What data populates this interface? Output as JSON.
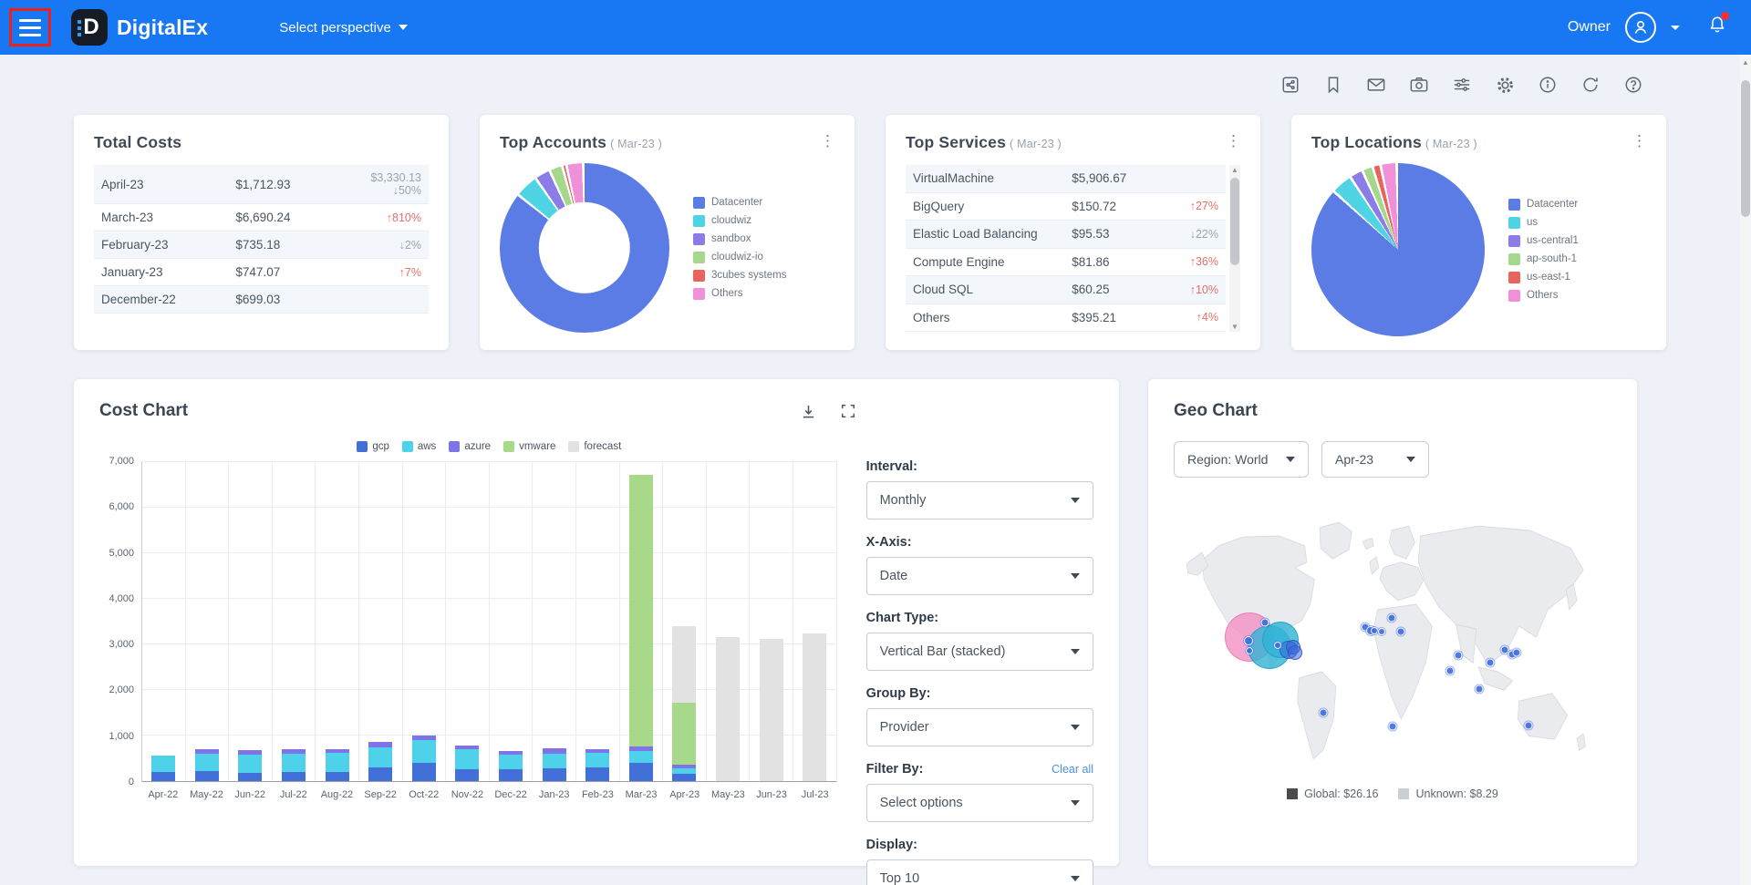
{
  "annotation": {
    "hamburger_highlight_color": "#ef1f1c"
  },
  "header": {
    "brand": "DigitalEx",
    "perspective": "Select perspective",
    "owner": "Owner",
    "accent": "#1877F2"
  },
  "toolbar": {
    "icons": [
      "share-icon",
      "bookmark-icon",
      "mail-icon",
      "camera-icon",
      "sliders-icon",
      "settings-icon",
      "info-icon",
      "refresh-icon",
      "help-icon"
    ]
  },
  "cards": {
    "total_costs": {
      "title": "Total Costs",
      "rows": [
        {
          "period": "April-23",
          "amount": "$1,712.93",
          "change_lines": [
            "$3,330.13",
            "↓50%"
          ],
          "dir": "down"
        },
        {
          "period": "March-23",
          "amount": "$6,690.24",
          "change_lines": [
            "↑810%"
          ],
          "dir": "up"
        },
        {
          "period": "February-23",
          "amount": "$735.18",
          "change_lines": [
            "↓2%"
          ],
          "dir": "down"
        },
        {
          "period": "January-23",
          "amount": "$747.07",
          "change_lines": [
            "↑7%"
          ],
          "dir": "up"
        },
        {
          "period": "December-22",
          "amount": "$699.03",
          "change_lines": [],
          "dir": "none"
        }
      ]
    },
    "top_accounts": {
      "title": "Top Accounts",
      "subtitle": "( Mar-23 )"
    },
    "top_services": {
      "title": "Top Services",
      "subtitle": "( Mar-23 )",
      "rows": [
        {
          "name": "VirtualMachine",
          "amount": "$5,906.67",
          "change": "",
          "dir": "none"
        },
        {
          "name": "BigQuery",
          "amount": "$150.72",
          "change": "↑27%",
          "dir": "up"
        },
        {
          "name": "Elastic Load Balancing",
          "amount": "$95.53",
          "change": "↓22%",
          "dir": "down"
        },
        {
          "name": "Compute Engine",
          "amount": "$81.86",
          "change": "↑36%",
          "dir": "up"
        },
        {
          "name": "Cloud SQL",
          "amount": "$60.25",
          "change": "↑10%",
          "dir": "up"
        },
        {
          "name": "Others",
          "amount": "$395.21",
          "change": "↑4%",
          "dir": "up"
        }
      ]
    },
    "top_locations": {
      "title": "Top Locations",
      "subtitle": "( Mar-23 )"
    }
  },
  "cost_chart": {
    "title": "Cost Chart",
    "icons": [
      "download-icon",
      "fullscreen-icon"
    ],
    "controls": [
      {
        "label": "Interval:",
        "value": "Monthly"
      },
      {
        "label": "X-Axis:",
        "value": "Date"
      },
      {
        "label": "Chart Type:",
        "value": "Vertical Bar (stacked)"
      },
      {
        "label": "Group By:",
        "value": "Provider"
      },
      {
        "label": "Filter By:",
        "value": "Select options",
        "link": "Clear all"
      },
      {
        "label": "Display:",
        "value": "Top 10"
      }
    ]
  },
  "geo_chart": {
    "title": "Geo Chart",
    "region_select": "Region: World",
    "month_select": "Apr-23",
    "legend": [
      {
        "label": "Global: $26.16",
        "color": "#4b4b4b"
      },
      {
        "label": "Unknown: $8.29",
        "color": "#cbced2"
      }
    ],
    "points": [
      {
        "x": 16.5,
        "y": 51.0,
        "r": 27,
        "type": "pink"
      },
      {
        "x": 21.3,
        "y": 54.7,
        "r": 24,
        "type": "cyan"
      },
      {
        "x": 23.9,
        "y": 52.0,
        "r": 20,
        "type": "cyan"
      },
      {
        "x": 25.8,
        "y": 55.5,
        "r": 10,
        "type": "bubble"
      },
      {
        "x": 26.9,
        "y": 54.6,
        "r": 8,
        "type": "bubble"
      },
      {
        "x": 27.3,
        "y": 56.6,
        "r": 8,
        "type": "bubble"
      },
      {
        "x": 16.3,
        "y": 52.3,
        "r": 5,
        "type": "small"
      },
      {
        "x": 16.6,
        "y": 56.0,
        "r": 4,
        "type": "small"
      },
      {
        "x": 20.2,
        "y": 45.8,
        "r": 4.5,
        "type": "small"
      },
      {
        "x": 23.2,
        "y": 54.0,
        "r": 4,
        "type": "small"
      },
      {
        "x": 43.7,
        "y": 47.3,
        "r": 4.5,
        "type": "small"
      },
      {
        "x": 44.8,
        "y": 48.8,
        "r": 5,
        "type": "small"
      },
      {
        "x": 45.7,
        "y": 48.8,
        "r": 4,
        "type": "small"
      },
      {
        "x": 47.4,
        "y": 49.0,
        "r": 4,
        "type": "small"
      },
      {
        "x": 49.8,
        "y": 44.0,
        "r": 4.5,
        "type": "small"
      },
      {
        "x": 52.0,
        "y": 49.0,
        "r": 4.5,
        "type": "small"
      },
      {
        "x": 63.3,
        "y": 63.3,
        "r": 4.5,
        "type": "small"
      },
      {
        "x": 65.4,
        "y": 57.7,
        "r": 4.5,
        "type": "small"
      },
      {
        "x": 72.8,
        "y": 60.3,
        "r": 4.5,
        "type": "small"
      },
      {
        "x": 76.1,
        "y": 55.7,
        "r": 4.5,
        "type": "small"
      },
      {
        "x": 77.8,
        "y": 57.3,
        "r": 4.5,
        "type": "small"
      },
      {
        "x": 78.9,
        "y": 56.5,
        "r": 4.5,
        "type": "small"
      },
      {
        "x": 70.2,
        "y": 70.0,
        "r": 4.5,
        "type": "small"
      },
      {
        "x": 33.9,
        "y": 78.7,
        "r": 4.5,
        "type": "small"
      },
      {
        "x": 50.0,
        "y": 83.7,
        "r": 4.5,
        "type": "small"
      },
      {
        "x": 81.7,
        "y": 83.3,
        "r": 4.5,
        "type": "small"
      }
    ]
  },
  "chart_data": [
    {
      "id": "top_accounts_donut",
      "type": "pie",
      "donut": true,
      "title": "Top Accounts ( Mar-23 )",
      "labels": [
        "Datacenter",
        "cloudwiz",
        "sandbox",
        "cloudwiz-io",
        "3cubes systems",
        "Others"
      ],
      "values": [
        86,
        4.5,
        3,
        2.5,
        0.8,
        3.2
      ],
      "colors": [
        "#5b7ce4",
        "#4fd4e6",
        "#8b7ce8",
        "#a5d88c",
        "#e8645c",
        "#f090d8"
      ],
      "legend_position": "right"
    },
    {
      "id": "top_locations_pie",
      "type": "pie",
      "donut": false,
      "title": "Top Locations ( Mar-23 )",
      "labels": [
        "Datacenter",
        "us",
        "us-central1",
        "ap-south-1",
        "us-east-1",
        "Others"
      ],
      "values": [
        87,
        4,
        2.5,
        2,
        1.5,
        3
      ],
      "colors": [
        "#5b7ce4",
        "#4fd4e6",
        "#8b7ce8",
        "#a5d88c",
        "#e8645c",
        "#f090d8"
      ],
      "legend_position": "right"
    },
    {
      "id": "cost_chart_bars",
      "type": "bar",
      "stacked": true,
      "title": "Cost Chart",
      "xlabel": "",
      "ylabel": "",
      "ylim": [
        0,
        7000
      ],
      "ytick_step": 1000,
      "grid": true,
      "legend_position": "top",
      "categories": [
        "Apr-22",
        "May-22",
        "Jun-22",
        "Jul-22",
        "Aug-22",
        "Sep-22",
        "Oct-22",
        "Nov-22",
        "Dec-22",
        "Jan-23",
        "Feb-23",
        "Mar-23",
        "Apr-23",
        "May-23",
        "Jun-23",
        "Jul-23"
      ],
      "series": [
        {
          "name": "gcp",
          "color": "#4270d8",
          "values": [
            200,
            220,
            180,
            200,
            200,
            300,
            400,
            250,
            250,
            270,
            300,
            400,
            150,
            0,
            0,
            0
          ]
        },
        {
          "name": "aws",
          "color": "#4ed2ea",
          "values": [
            350,
            380,
            400,
            390,
            410,
            440,
            490,
            440,
            330,
            330,
            310,
            250,
            120,
            0,
            0,
            0
          ]
        },
        {
          "name": "azure",
          "color": "#7e74e8",
          "values": [
            0,
            100,
            90,
            110,
            90,
            110,
            110,
            80,
            80,
            110,
            90,
            110,
            80,
            0,
            0,
            0
          ]
        },
        {
          "name": "vmware",
          "color": "#a8d98b",
          "values": [
            0,
            0,
            0,
            0,
            0,
            0,
            0,
            0,
            0,
            0,
            0,
            5930,
            1365,
            0,
            0,
            0
          ]
        },
        {
          "name": "forecast",
          "color": "#e2e2e2",
          "values": [
            0,
            0,
            0,
            0,
            0,
            0,
            0,
            0,
            0,
            0,
            0,
            0,
            1670,
            3150,
            3100,
            3230
          ]
        }
      ]
    },
    {
      "id": "geo_scatter",
      "type": "scatter",
      "title": "Geo Chart (Region: World, Apr-23)",
      "legend": [
        "Global: $26.16",
        "Unknown: $8.29"
      ]
    }
  ]
}
